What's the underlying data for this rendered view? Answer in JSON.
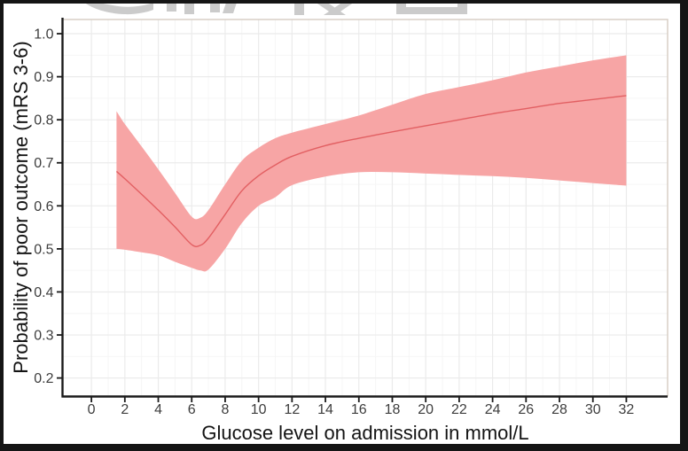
{
  "figure": {
    "frame_color": "#151515",
    "background": "#FFFFFF",
    "watermark": {
      "description": "illegible cropped gray letter fragments along top edge",
      "color": "#CBCBCB"
    }
  },
  "chart_data": {
    "type": "line",
    "subtype": "smoothed probability estimate with confidence band",
    "title": "",
    "xlabel": "Glucose level on admission in mmol/L",
    "ylabel": "Probability of poor outcome (mRS 3-6)",
    "x_ticks": [
      0,
      2,
      4,
      6,
      8,
      10,
      12,
      14,
      16,
      18,
      20,
      22,
      24,
      26,
      28,
      30,
      32
    ],
    "x_tick_labels": [
      "0",
      "2",
      "4",
      "6",
      "8",
      "10",
      "12",
      "14",
      "16",
      "18",
      "20",
      "22",
      "24",
      "26",
      "28",
      "30",
      "32"
    ],
    "y_ticks": [
      0.2,
      0.3,
      0.4,
      0.5,
      0.6,
      0.7,
      0.8,
      0.9,
      1.0
    ],
    "y_tick_labels": [
      "0.2",
      "0.3",
      "0.4",
      "0.5",
      "0.6",
      "0.7",
      "0.8",
      "0.9",
      "1.0"
    ],
    "xlim": [
      -1.73,
      34.47
    ],
    "ylim": [
      0.157,
      1.033
    ],
    "x_minor_ticks": [
      1,
      3,
      5,
      7,
      9,
      11,
      13,
      15,
      17,
      19,
      21,
      23,
      25,
      27,
      29,
      31
    ],
    "y_minor_ticks": [
      0.25,
      0.35,
      0.45,
      0.55,
      0.65,
      0.75,
      0.85,
      0.95
    ],
    "grid": "major and minor gridlines, legend none",
    "x": [
      1.5,
      2,
      3,
      4,
      5,
      6,
      6.5,
      7,
      8,
      9,
      10,
      11,
      12,
      14,
      16,
      18,
      20,
      22,
      24,
      26,
      28,
      30,
      32
    ],
    "series": [
      {
        "name": "estimate",
        "values": [
          0.68,
          0.663,
          0.627,
          0.59,
          0.551,
          0.51,
          0.508,
          0.525,
          0.58,
          0.635,
          0.67,
          0.695,
          0.715,
          0.74,
          0.757,
          0.772,
          0.786,
          0.8,
          0.814,
          0.826,
          0.838,
          0.847,
          0.856
        ]
      },
      {
        "name": "ci_upper",
        "values": [
          0.82,
          0.79,
          0.738,
          0.685,
          0.63,
          0.575,
          0.572,
          0.59,
          0.65,
          0.705,
          0.735,
          0.757,
          0.77,
          0.79,
          0.81,
          0.835,
          0.86,
          0.876,
          0.892,
          0.91,
          0.924,
          0.938,
          0.95
        ]
      },
      {
        "name": "ci_lower",
        "values": [
          0.5,
          0.498,
          0.492,
          0.485,
          0.47,
          0.456,
          0.45,
          0.452,
          0.5,
          0.56,
          0.6,
          0.62,
          0.648,
          0.668,
          0.678,
          0.678,
          0.675,
          0.672,
          0.669,
          0.665,
          0.659,
          0.653,
          0.647
        ]
      }
    ],
    "colors": {
      "band": "#F7A5A5",
      "line": "#E25F62",
      "axis_line": "#1A1A1A",
      "tick_label": "#3D3D3D",
      "axis_title": "#141414",
      "grid_major": "#EBEBEB",
      "grid_minor": "#F5F5F5",
      "panel_border": "#D8CFC5"
    }
  }
}
